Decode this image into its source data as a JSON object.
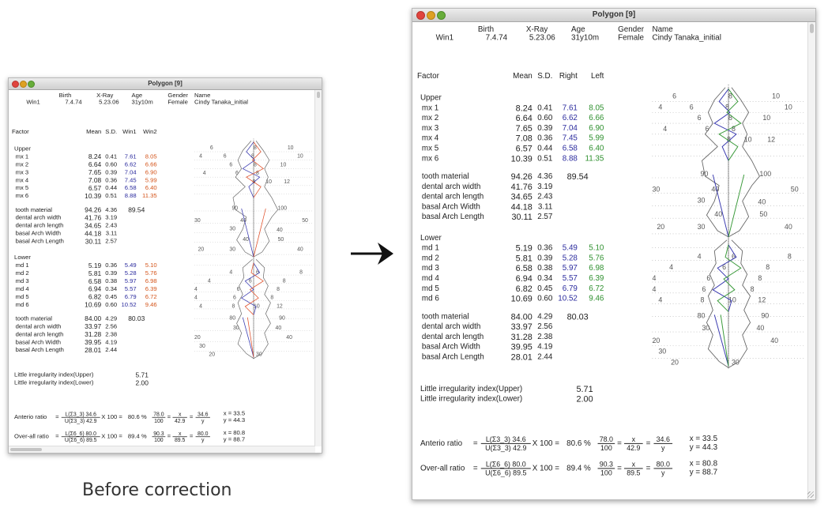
{
  "windows": [
    {
      "id": "before",
      "title": "Polygon [9]",
      "header": {
        "labels": {
          "birth": "Birth",
          "xray": "X-Ray",
          "age": "Age",
          "gender": "Gender",
          "name": "Name"
        },
        "values": {
          "id": "Win1",
          "birth": "7.4.74",
          "xray": "5.23.06",
          "age": "31y10m",
          "gender": "Female",
          "name": "Cindy Tanaka_initial"
        }
      },
      "columns": {
        "factor": "Factor",
        "mean": "Mean",
        "sd": "S.D.",
        "v1": "Win1",
        "v2": "Win2"
      },
      "upper": {
        "label": "Upper",
        "rows": [
          {
            "name": "mx 1",
            "mean": "8.24",
            "sd": "0.41",
            "v1": "7.61",
            "v2": "8.05"
          },
          {
            "name": "mx 2",
            "mean": "6.64",
            "sd": "0.60",
            "v1": "6.62",
            "v2": "6.66"
          },
          {
            "name": "mx 3",
            "mean": "7.65",
            "sd": "0.39",
            "v1": "7.04",
            "v2": "6.90"
          },
          {
            "name": "mx 4",
            "mean": "7.08",
            "sd": "0.36",
            "v1": "7.45",
            "v2": "5.99"
          },
          {
            "name": "mx 5",
            "mean": "6.57",
            "sd": "0.44",
            "v1": "6.58",
            "v2": "6.40"
          },
          {
            "name": "mx 6",
            "mean": "10.39",
            "sd": "0.51",
            "v1": "8.88",
            "v2": "11.35"
          }
        ],
        "tooth": {
          "name": "tooth material",
          "mean": "94.26",
          "sd": "4.36",
          "v": "89.54"
        },
        "arch": [
          {
            "name": "dental arch width",
            "mean": "41.76",
            "sd": "3.19"
          },
          {
            "name": "dental arch length",
            "mean": "34.65",
            "sd": "2.43"
          },
          {
            "name": "basal Arch Width",
            "mean": "44.18",
            "sd": "3.11"
          },
          {
            "name": "basal Arch Length",
            "mean": "30.11",
            "sd": "2.57"
          }
        ]
      },
      "lower": {
        "label": "Lower",
        "rows": [
          {
            "name": "md 1",
            "mean": "5.19",
            "sd": "0.36",
            "v1": "5.49",
            "v2": "5.10"
          },
          {
            "name": "md 2",
            "mean": "5.81",
            "sd": "0.39",
            "v1": "5.28",
            "v2": "5.76"
          },
          {
            "name": "md 3",
            "mean": "6.58",
            "sd": "0.38",
            "v1": "5.97",
            "v2": "6.98"
          },
          {
            "name": "md 4",
            "mean": "6.94",
            "sd": "0.34",
            "v1": "5.57",
            "v2": "6.39"
          },
          {
            "name": "md 5",
            "mean": "6.82",
            "sd": "0.45",
            "v1": "6.79",
            "v2": "6.72"
          },
          {
            "name": "md 6",
            "mean": "10.69",
            "sd": "0.60",
            "v1": "10.52",
            "v2": "9.46"
          }
        ],
        "tooth": {
          "name": "tooth material",
          "mean": "84.00",
          "sd": "4.29",
          "v": "80.03"
        },
        "arch": [
          {
            "name": "dental arch width",
            "mean": "33.97",
            "sd": "2.56"
          },
          {
            "name": "dental arch length",
            "mean": "31.28",
            "sd": "2.38"
          },
          {
            "name": "basal Arch Width",
            "mean": "39.95",
            "sd": "4.19"
          },
          {
            "name": "basal Arch Length",
            "mean": "28.01",
            "sd": "2.44"
          }
        ]
      },
      "irregularity": [
        {
          "label": "Little irregularity index(Upper)",
          "value": "5.71"
        },
        {
          "label": "Little irregularity index(Lower)",
          "value": "2.00"
        }
      ],
      "ratios": [
        {
          "label": "Anterio ratio",
          "lnum": "L(Σ3_3) 34.6",
          "lden": "U(Σ3_3) 42.9",
          "times": "X 100 =",
          "pct": "80.6 %",
          "a_num": "78.0",
          "a_den": "100",
          "b_num": "x",
          "b_den": "42.9",
          "c_num": "34.6",
          "c_den": "y",
          "x": "x = 33.5",
          "y": "y = 44.3"
        },
        {
          "label": "Over-all ratio",
          "lnum": "L(Σ6_6) 80.0",
          "lden": "U(Σ6_6) 89.5",
          "times": "X 100 =",
          "pct": "89.4 %",
          "a_num": "90.3",
          "a_den": "100",
          "b_num": "x",
          "b_den": "89.5",
          "c_num": "80.0",
          "c_den": "y",
          "x": "x = 80.8",
          "y": "y = 88.7"
        }
      ],
      "polygon_labels": {
        "upper_teeth": [
          "6",
          "8",
          "10",
          "4",
          "6",
          "8",
          "10",
          "6",
          "8",
          "10",
          "4",
          "6",
          "8",
          "8",
          "10",
          "12"
        ],
        "upper_tooth_mat": [
          "90",
          "100"
        ],
        "upper_arch": [
          "30",
          "40",
          "50",
          "30",
          "40",
          "40",
          "50",
          "20",
          "30",
          "40"
        ],
        "lower_teeth": [
          "4",
          "6",
          "8",
          "4",
          "6",
          "8",
          "4",
          "6",
          "8",
          "4",
          "6",
          "8",
          "4",
          "8",
          "10",
          "12"
        ],
        "lower_tooth_mat": [
          "80",
          "90"
        ],
        "lower_arch": [
          "30",
          "40",
          "20",
          "40",
          "30",
          "20",
          "30"
        ]
      },
      "colors": {
        "series1": "#3a3ab0",
        "series2": "#e0502a"
      }
    },
    {
      "id": "after",
      "title": "Polygon [9]",
      "header": {
        "labels": {
          "birth": "Birth",
          "xray": "X-Ray",
          "age": "Age",
          "gender": "Gender",
          "name": "Name"
        },
        "values": {
          "id": "Win1",
          "birth": "7.4.74",
          "xray": "5.23.06",
          "age": "31y10m",
          "gender": "Female",
          "name": "Cindy Tanaka_initial"
        }
      },
      "columns": {
        "factor": "Factor",
        "mean": "Mean",
        "sd": "S.D.",
        "v1": "Right",
        "v2": "Left"
      },
      "upper": {
        "label": "Upper",
        "rows": [
          {
            "name": "mx 1",
            "mean": "8.24",
            "sd": "0.41",
            "v1": "7.61",
            "v2": "8.05"
          },
          {
            "name": "mx 2",
            "mean": "6.64",
            "sd": "0.60",
            "v1": "6.62",
            "v2": "6.66"
          },
          {
            "name": "mx 3",
            "mean": "7.65",
            "sd": "0.39",
            "v1": "7.04",
            "v2": "6.90"
          },
          {
            "name": "mx 4",
            "mean": "7.08",
            "sd": "0.36",
            "v1": "7.45",
            "v2": "5.99"
          },
          {
            "name": "mx 5",
            "mean": "6.57",
            "sd": "0.44",
            "v1": "6.58",
            "v2": "6.40"
          },
          {
            "name": "mx 6",
            "mean": "10.39",
            "sd": "0.51",
            "v1": "8.88",
            "v2": "11.35"
          }
        ],
        "tooth": {
          "name": "tooth material",
          "mean": "94.26",
          "sd": "4.36",
          "v": "89.54"
        },
        "arch": [
          {
            "name": "dental arch width",
            "mean": "41.76",
            "sd": "3.19"
          },
          {
            "name": "dental arch length",
            "mean": "34.65",
            "sd": "2.43"
          },
          {
            "name": "basal Arch Width",
            "mean": "44.18",
            "sd": "3.11"
          },
          {
            "name": "basal Arch Length",
            "mean": "30.11",
            "sd": "2.57"
          }
        ]
      },
      "lower": {
        "label": "Lower",
        "rows": [
          {
            "name": "md 1",
            "mean": "5.19",
            "sd": "0.36",
            "v1": "5.49",
            "v2": "5.10"
          },
          {
            "name": "md 2",
            "mean": "5.81",
            "sd": "0.39",
            "v1": "5.28",
            "v2": "5.76"
          },
          {
            "name": "md 3",
            "mean": "6.58",
            "sd": "0.38",
            "v1": "5.97",
            "v2": "6.98"
          },
          {
            "name": "md 4",
            "mean": "6.94",
            "sd": "0.34",
            "v1": "5.57",
            "v2": "6.39"
          },
          {
            "name": "md 5",
            "mean": "6.82",
            "sd": "0.45",
            "v1": "6.79",
            "v2": "6.72"
          },
          {
            "name": "md 6",
            "mean": "10.69",
            "sd": "0.60",
            "v1": "10.52",
            "v2": "9.46"
          }
        ],
        "tooth": {
          "name": "tooth material",
          "mean": "84.00",
          "sd": "4.29",
          "v": "80.03"
        },
        "arch": [
          {
            "name": "dental arch width",
            "mean": "33.97",
            "sd": "2.56"
          },
          {
            "name": "dental arch length",
            "mean": "31.28",
            "sd": "2.38"
          },
          {
            "name": "basal Arch Width",
            "mean": "39.95",
            "sd": "4.19"
          },
          {
            "name": "basal Arch Length",
            "mean": "28.01",
            "sd": "2.44"
          }
        ]
      },
      "irregularity": [
        {
          "label": "Little irregularity index(Upper)",
          "value": "5.71"
        },
        {
          "label": "Little irregularity index(Lower)",
          "value": "2.00"
        }
      ],
      "ratios": [
        {
          "label": "Anterio ratio",
          "lnum": "L(Σ3_3) 34.6",
          "lden": "U(Σ3_3) 42.9",
          "times": "X 100 =",
          "pct": "80.6 %",
          "a_num": "78.0",
          "a_den": "100",
          "b_num": "x",
          "b_den": "42.9",
          "c_num": "34.6",
          "c_den": "y",
          "x": "x = 33.5",
          "y": "y = 44.3"
        },
        {
          "label": "Over-all ratio",
          "lnum": "L(Σ6_6) 80.0",
          "lden": "U(Σ6_6) 89.5",
          "times": "X 100 =",
          "pct": "89.4 %",
          "a_num": "90.3",
          "a_den": "100",
          "b_num": "x",
          "b_den": "89.5",
          "c_num": "80.0",
          "c_den": "y",
          "x": "x = 80.8",
          "y": "y = 88.7"
        }
      ],
      "polygon_labels": {
        "upper_teeth": [
          "6",
          "8",
          "10",
          "4",
          "6",
          "8",
          "10",
          "6",
          "8",
          "10",
          "4",
          "6",
          "8",
          "8",
          "10",
          "12"
        ],
        "upper_tooth_mat": [
          "90",
          "100"
        ],
        "upper_arch": [
          "30",
          "40",
          "50",
          "30",
          "40",
          "40",
          "50",
          "20",
          "30",
          "40"
        ],
        "lower_teeth": [
          "4",
          "6",
          "8",
          "4",
          "6",
          "8",
          "4",
          "6",
          "8",
          "4",
          "6",
          "8",
          "4",
          "8",
          "10",
          "12"
        ],
        "lower_tooth_mat": [
          "80",
          "90"
        ],
        "lower_arch": [
          "30",
          "40",
          "20",
          "40",
          "30",
          "20",
          "30"
        ]
      },
      "colors": {
        "series1": "#3a3ab0",
        "series2": "#3a9a3a"
      }
    }
  ],
  "caption": "Before correction",
  "arrow_icon": "right-arrow-icon"
}
